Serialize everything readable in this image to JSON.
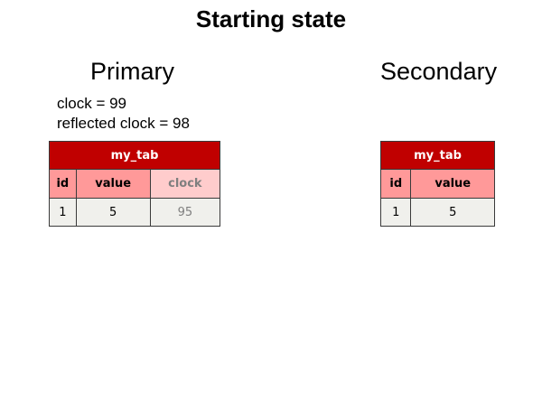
{
  "title": "Starting state",
  "primary": {
    "name": "Primary",
    "clock_text": "clock = 99",
    "reflected_clock_text": "reflected clock = 98",
    "table": {
      "caption": "my_tab",
      "columns": [
        "id",
        "value",
        "clock"
      ],
      "rows": [
        [
          "1",
          "5",
          "95"
        ]
      ]
    }
  },
  "secondary": {
    "name": "Secondary",
    "table": {
      "caption": "my_tab",
      "columns": [
        "id",
        "value"
      ],
      "rows": [
        [
          "1",
          "5"
        ]
      ]
    }
  },
  "colors": {
    "caption_bg": "#c00000",
    "header_bg": "#ff9999",
    "reflected_header_bg": "#ffcccc",
    "cell_bg": "#f0f0ec",
    "reflected_text": "#7f7f7f"
  }
}
